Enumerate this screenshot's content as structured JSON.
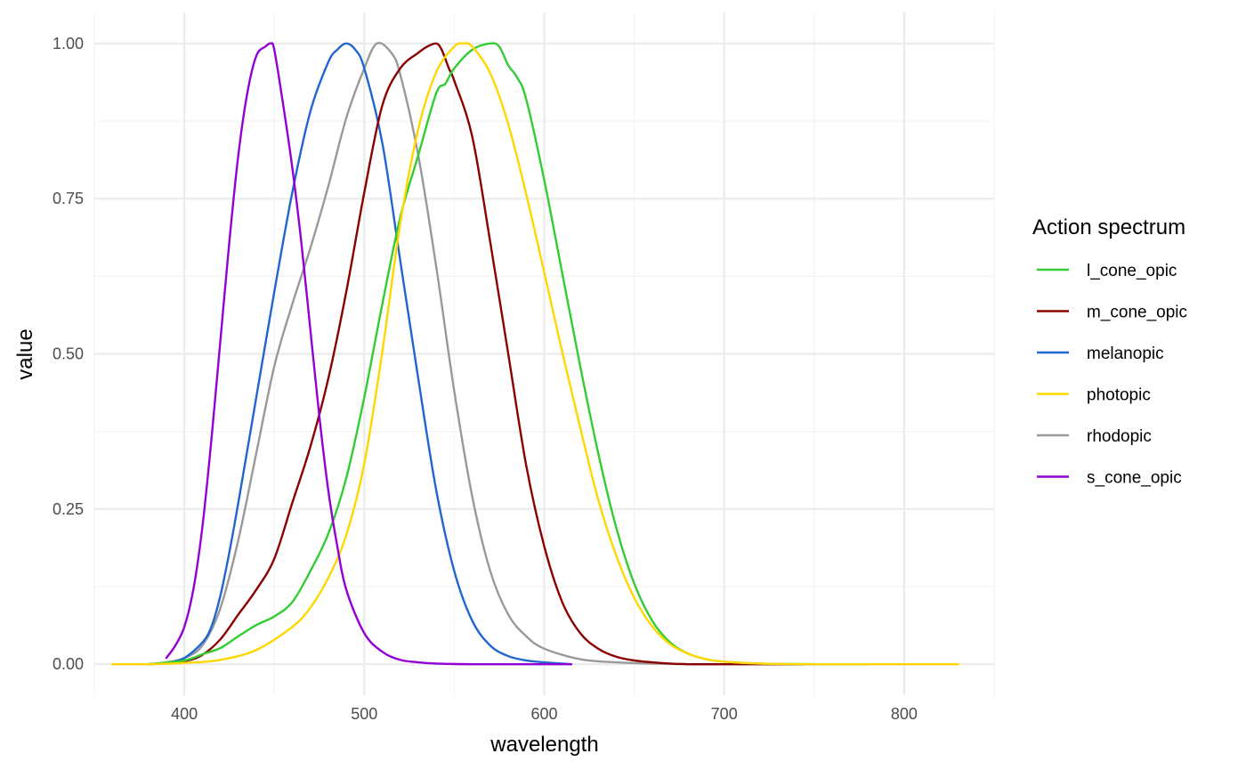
{
  "chart_data": {
    "type": "line",
    "title": "",
    "xlabel": "wavelength",
    "ylabel": "value",
    "xlim": [
      350,
      850
    ],
    "ylim": [
      0,
      1
    ],
    "x_ticks": [
      400,
      500,
      600,
      700,
      800
    ],
    "y_ticks": [
      0,
      0.25,
      0.5,
      0.75,
      1
    ],
    "x_tick_labels": [
      "400",
      "500",
      "600",
      "700",
      "800"
    ],
    "y_tick_labels": [
      "0.00",
      "0.25",
      "0.50",
      "0.75",
      "1.00"
    ],
    "grid": true,
    "legend": {
      "title": "Action spectrum",
      "placement": "right"
    },
    "series": [
      {
        "name": "l_cone_opic",
        "color": "#32cd32",
        "x": [
          380,
          400,
          410,
          420,
          430,
          440,
          450,
          460,
          470,
          480,
          490,
          500,
          510,
          520,
          530,
          540,
          545,
          550,
          560,
          570,
          575,
          580,
          585,
          590,
          600,
          610,
          620,
          630,
          640,
          650,
          660,
          670,
          680,
          690,
          700,
          720,
          750,
          780
        ],
        "y": [
          0,
          0.006,
          0.016,
          0.026,
          0.045,
          0.063,
          0.077,
          0.1,
          0.15,
          0.21,
          0.3,
          0.43,
          0.58,
          0.72,
          0.82,
          0.92,
          0.935,
          0.96,
          0.99,
          1.0,
          0.995,
          0.965,
          0.945,
          0.91,
          0.78,
          0.63,
          0.48,
          0.34,
          0.22,
          0.13,
          0.07,
          0.035,
          0.017,
          0.008,
          0.004,
          0.001,
          0,
          0
        ]
      },
      {
        "name": "m_cone_opic",
        "color": "#8b0000",
        "x": [
          380,
          400,
          410,
          420,
          430,
          440,
          450,
          460,
          470,
          480,
          490,
          500,
          510,
          520,
          530,
          535,
          540,
          543,
          547,
          550,
          560,
          570,
          580,
          590,
          600,
          610,
          620,
          630,
          640,
          650,
          660,
          670,
          680,
          700,
          720,
          750,
          780
        ],
        "y": [
          0,
          0.005,
          0.015,
          0.04,
          0.08,
          0.12,
          0.17,
          0.26,
          0.35,
          0.46,
          0.6,
          0.76,
          0.9,
          0.96,
          0.985,
          0.995,
          1.0,
          0.99,
          0.96,
          0.94,
          0.85,
          0.68,
          0.5,
          0.32,
          0.19,
          0.1,
          0.05,
          0.025,
          0.012,
          0.006,
          0.003,
          0.001,
          0,
          0,
          0,
          0,
          0
        ]
      },
      {
        "name": "melanopic",
        "color": "#1f66d0",
        "x": [
          380,
          390,
          400,
          410,
          415,
          420,
          425,
          430,
          440,
          450,
          460,
          470,
          480,
          485,
          490,
          495,
          500,
          510,
          520,
          530,
          540,
          550,
          560,
          570,
          580,
          590,
          600,
          615
        ],
        "y": [
          0,
          0.002,
          0.01,
          0.035,
          0.06,
          0.11,
          0.18,
          0.26,
          0.43,
          0.6,
          0.76,
          0.89,
          0.97,
          0.99,
          1.0,
          0.99,
          0.96,
          0.84,
          0.65,
          0.46,
          0.28,
          0.15,
          0.07,
          0.03,
          0.013,
          0.006,
          0.003,
          0
        ]
      },
      {
        "name": "photopic",
        "color": "#ffd700",
        "x": [
          360,
          380,
          400,
          420,
          440,
          460,
          470,
          480,
          490,
          500,
          510,
          520,
          530,
          540,
          550,
          555,
          560,
          570,
          580,
          590,
          600,
          610,
          620,
          630,
          640,
          650,
          660,
          670,
          680,
          690,
          700,
          720,
          750,
          780,
          800,
          830
        ],
        "y": [
          0,
          0,
          0.002,
          0.007,
          0.023,
          0.06,
          0.091,
          0.139,
          0.208,
          0.323,
          0.503,
          0.71,
          0.862,
          0.954,
          0.995,
          1.0,
          0.995,
          0.952,
          0.87,
          0.757,
          0.631,
          0.503,
          0.381,
          0.265,
          0.175,
          0.107,
          0.061,
          0.032,
          0.017,
          0.008,
          0.004,
          0.001,
          0,
          0,
          0,
          0
        ]
      },
      {
        "name": "rhodopic",
        "color": "#999999",
        "x": [
          380,
          390,
          400,
          410,
          420,
          430,
          440,
          450,
          460,
          470,
          480,
          490,
          500,
          507,
          515,
          520,
          530,
          540,
          550,
          560,
          570,
          580,
          590,
          600,
          620,
          640,
          660,
          680,
          700,
          740,
          780
        ],
        "y": [
          0,
          0.003,
          0.01,
          0.03,
          0.09,
          0.2,
          0.34,
          0.48,
          0.58,
          0.67,
          0.77,
          0.88,
          0.96,
          1.0,
          0.985,
          0.95,
          0.82,
          0.64,
          0.44,
          0.27,
          0.15,
          0.08,
          0.045,
          0.025,
          0.008,
          0.003,
          0.001,
          0,
          0,
          0,
          0
        ]
      },
      {
        "name": "s_cone_opic",
        "color": "#9400d3",
        "x": [
          390,
          395,
          400,
          405,
          410,
          415,
          420,
          425,
          430,
          435,
          440,
          445,
          448,
          450,
          455,
          460,
          465,
          470,
          475,
          480,
          485,
          490,
          500,
          510,
          520,
          530,
          540,
          560,
          580,
          615
        ],
        "y": [
          0.01,
          0.03,
          0.06,
          0.12,
          0.22,
          0.36,
          0.52,
          0.68,
          0.82,
          0.92,
          0.98,
          0.995,
          1.0,
          0.99,
          0.9,
          0.8,
          0.68,
          0.54,
          0.4,
          0.28,
          0.19,
          0.12,
          0.05,
          0.02,
          0.007,
          0.003,
          0.001,
          0,
          0,
          0
        ]
      }
    ]
  }
}
